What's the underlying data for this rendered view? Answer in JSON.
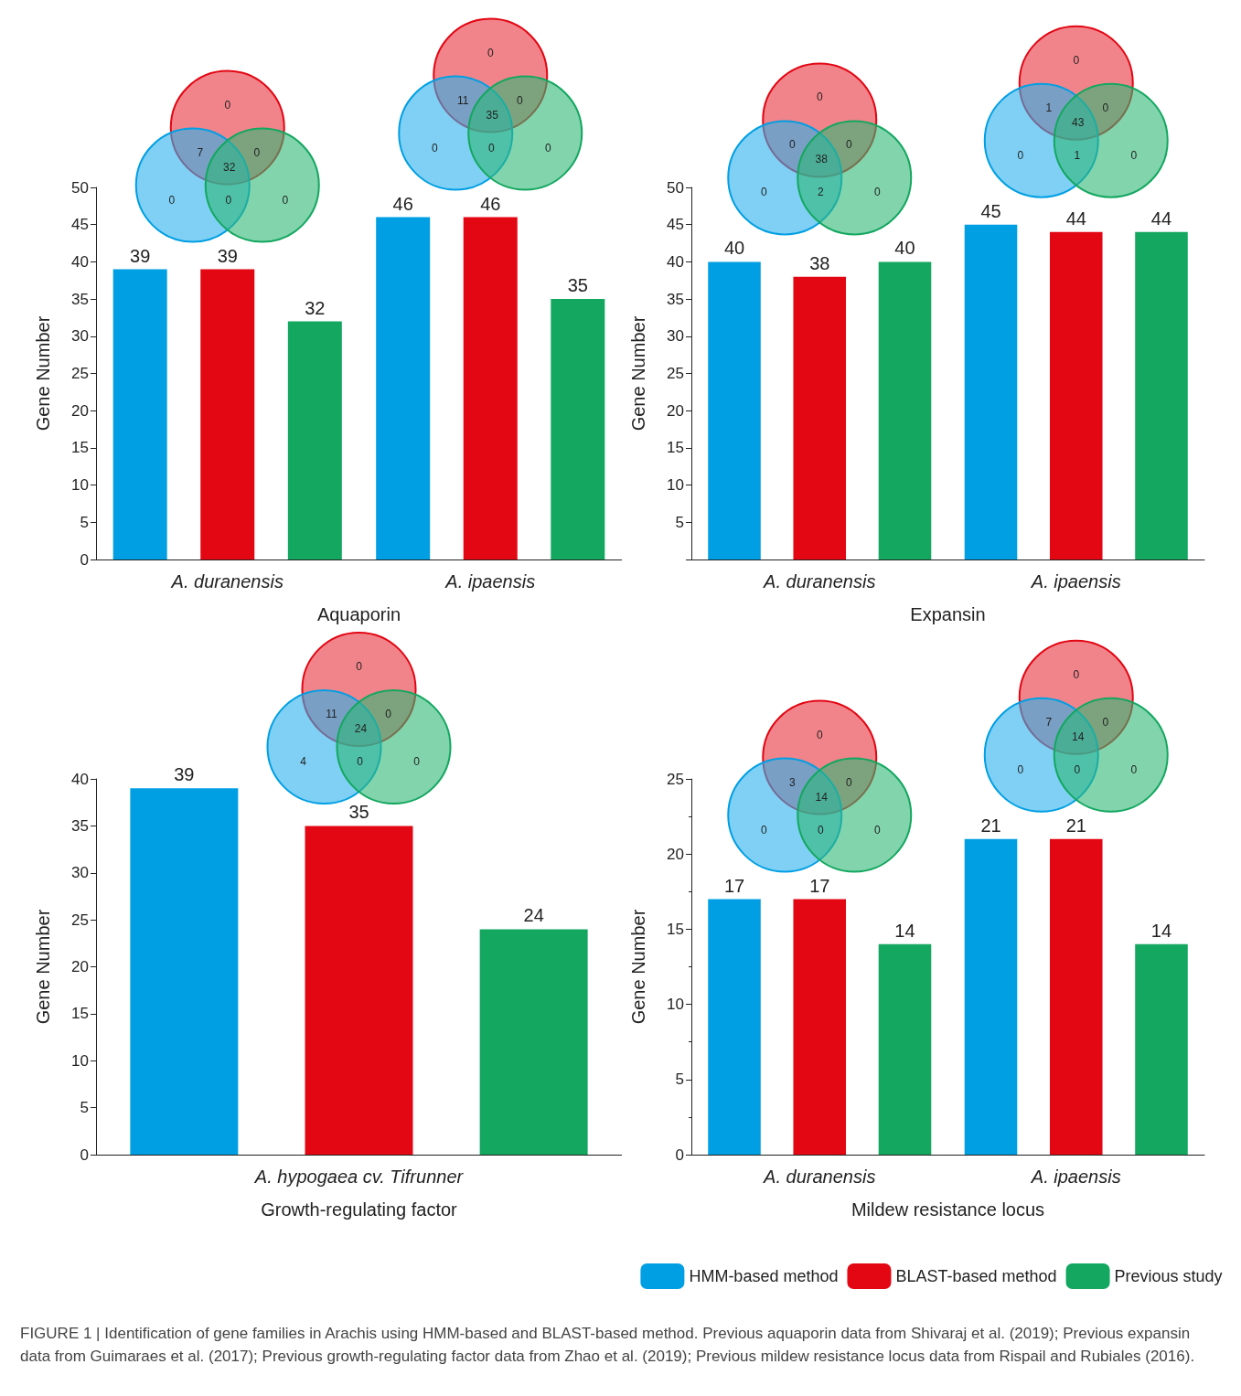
{
  "chart_data": [
    {
      "type": "bar",
      "xlabel": "Aquaporin",
      "ylabel": "Gene Number",
      "categories": [
        "A. duranensis",
        "A. ipaensis"
      ],
      "series": [
        {
          "color": "#009fe3",
          "values": [
            39,
            46
          ]
        },
        {
          "color": "#e30613",
          "values": [
            39,
            46
          ]
        },
        {
          "color": "#13a75f",
          "values": [
            32,
            35
          ]
        }
      ],
      "ylim": [
        0,
        50
      ],
      "yticks": [
        0,
        5,
        10,
        15,
        20,
        25,
        30,
        35,
        40,
        45,
        50
      ],
      "data_labels": true,
      "grid": false,
      "legend": false,
      "annotations": [
        "0",
        "7",
        "0",
        "32",
        "0",
        "0",
        "0",
        "0",
        "11",
        "0",
        "35",
        "0",
        "0",
        "0"
      ]
    },
    {
      "type": "bar",
      "xlabel": "Expansin",
      "ylabel": "Gene Number",
      "categories": [
        "A. duranensis",
        "A. ipaensis"
      ],
      "series": [
        {
          "color": "#009fe3",
          "values": [
            40,
            45
          ]
        },
        {
          "color": "#e30613",
          "values": [
            38,
            44
          ]
        },
        {
          "color": "#13a75f",
          "values": [
            40,
            44
          ]
        }
      ],
      "ylim": [
        0,
        50
      ],
      "yticks": [
        {
          "value": 0,
          "label": null
        },
        5,
        10,
        15,
        20,
        25,
        30,
        35,
        40,
        45,
        50
      ],
      "data_labels": true,
      "grid": false,
      "legend": false,
      "annotations": [
        "0",
        "0",
        "0",
        "38",
        "0",
        "2",
        "0",
        "0",
        "1",
        "0",
        "43",
        "0",
        "1",
        "0"
      ]
    },
    {
      "type": "bar",
      "xlabel": "Growth-regulating factor",
      "ylabel": "Gene Number",
      "categories": [
        "A. hypogaea cv. Tifrunner"
      ],
      "series": [
        {
          "color": "#009fe3",
          "values": [
            39
          ]
        },
        {
          "color": "#e30613",
          "values": [
            35
          ]
        },
        {
          "color": "#13a75f",
          "values": [
            24
          ]
        }
      ],
      "ylim": [
        0,
        40
      ],
      "yticks": [
        0,
        5,
        10,
        15,
        20,
        25,
        30,
        35,
        40
      ],
      "data_labels": true,
      "grid": false,
      "legend": false,
      "annotations": [
        "0",
        "11",
        "0",
        "24",
        "4",
        "0",
        "0"
      ]
    },
    {
      "type": "bar",
      "xlabel": "Mildew resistance locus",
      "ylabel": "Gene Number",
      "categories": [
        "A. duranensis",
        "A. ipaensis"
      ],
      "series": [
        {
          "name": "HMM-based method",
          "color": "#009fe3",
          "values": [
            17,
            21
          ]
        },
        {
          "name": "BLAST-based method",
          "color": "#e30613",
          "values": [
            17,
            21
          ]
        },
        {
          "name": "Previous study",
          "color": "#13a75f",
          "values": [
            14,
            14
          ]
        }
      ],
      "ylim": [
        0,
        25
      ],
      "yticks": [
        0,
        5,
        10,
        15,
        20,
        25
      ],
      "data_labels": true,
      "grid": false,
      "legend": "bottom",
      "annotations": [
        "0",
        "3",
        "0",
        "14",
        "0",
        "0",
        "0",
        "0",
        "7",
        "0",
        "14",
        "0",
        "0",
        "0"
      ]
    },
    {
      "type": "other",
      "annotations": [
        "FIGURE 1 | Identification of gene families in Arachis using HMM-based and BLAST-based method. Previous aquaporin data from Shivaraj et al. (2019); Previous expansin data from Guimaraes et al. (2017); Previous growth-regulating factor data from Zhao et al. (2019); Previous mildew resistance locus data from Rispail and Rubiales (2016)."
      ]
    }
  ]
}
